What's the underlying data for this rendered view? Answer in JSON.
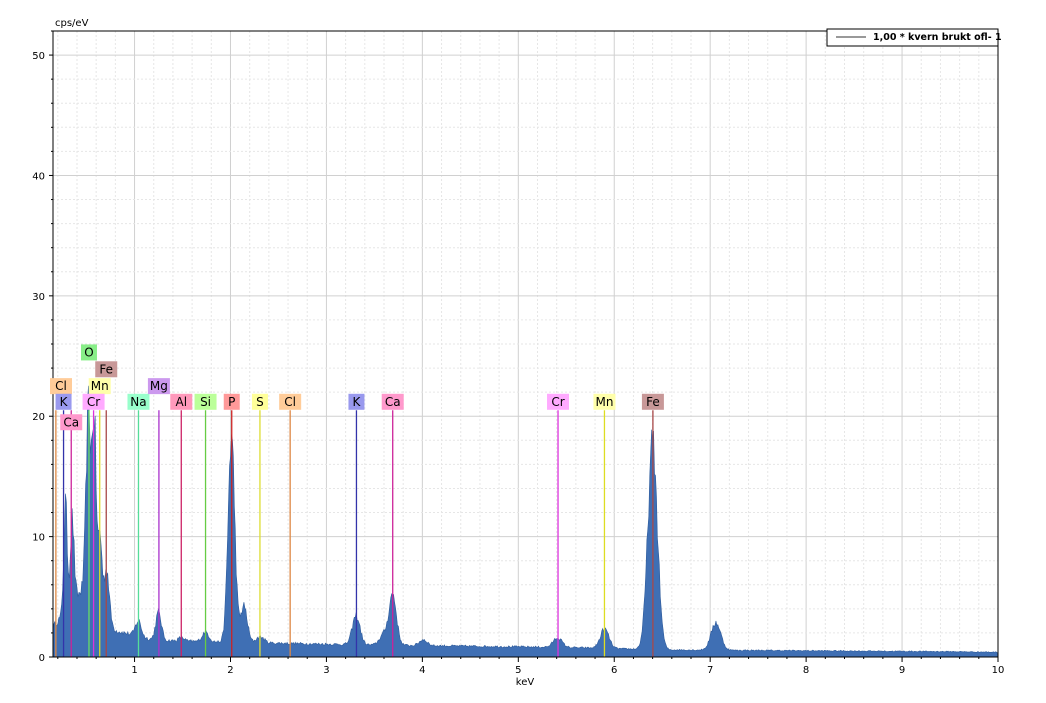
{
  "chart_data": {
    "type": "line",
    "title": "",
    "xlabel": "keV",
    "ylabel": "cps/eV",
    "xlim": [
      0.15,
      10
    ],
    "ylim": [
      0,
      52
    ],
    "x_ticks": [
      1,
      2,
      3,
      4,
      5,
      6,
      7,
      8,
      9,
      10
    ],
    "y_ticks": [
      0,
      10,
      20,
      30,
      40,
      50
    ],
    "grid": true,
    "legend": {
      "placement": "top-right",
      "entries": [
        "1,00 * kvern brukt ofl- 1"
      ]
    },
    "series": [
      {
        "name": "1,00 * kvern brukt ofl- 1",
        "fill_color": "#3f6fb4",
        "baseline": 0.8,
        "background": [
          [
            0.15,
            2.5
          ],
          [
            0.5,
            6.0
          ],
          [
            0.8,
            2.2
          ],
          [
            1.2,
            1.4
          ],
          [
            1.6,
            1.3
          ],
          [
            2.2,
            1.2
          ],
          [
            2.8,
            1.1
          ],
          [
            3.5,
            1.0
          ],
          [
            4.5,
            0.9
          ],
          [
            5.5,
            0.8
          ],
          [
            6.5,
            0.6
          ],
          [
            7.5,
            0.55
          ],
          [
            8.5,
            0.5
          ],
          [
            9.5,
            0.45
          ],
          [
            10.0,
            0.4
          ]
        ],
        "peaks": [
          {
            "center": 0.28,
            "height": 9.0,
            "width": 0.018
          },
          {
            "center": 0.35,
            "height": 7.0,
            "width": 0.02
          },
          {
            "center": 0.52,
            "height": 15.0,
            "width": 0.025
          },
          {
            "center": 0.58,
            "height": 14.5,
            "width": 0.02
          },
          {
            "center": 0.64,
            "height": 6.0,
            "width": 0.02
          },
          {
            "center": 0.71,
            "height": 4.0,
            "width": 0.025
          },
          {
            "center": 1.04,
            "height": 1.3,
            "width": 0.03
          },
          {
            "center": 1.25,
            "height": 2.3,
            "width": 0.03
          },
          {
            "center": 1.49,
            "height": 0.3,
            "width": 0.03
          },
          {
            "center": 1.74,
            "height": 0.8,
            "width": 0.035
          },
          {
            "center": 2.01,
            "height": 17.0,
            "width": 0.035
          },
          {
            "center": 2.14,
            "height": 3.0,
            "width": 0.035
          },
          {
            "center": 2.31,
            "height": 0.5,
            "width": 0.04
          },
          {
            "center": 3.31,
            "height": 2.4,
            "width": 0.04
          },
          {
            "center": 3.59,
            "height": 0.8,
            "width": 0.04
          },
          {
            "center": 3.69,
            "height": 4.2,
            "width": 0.04
          },
          {
            "center": 4.01,
            "height": 0.5,
            "width": 0.04
          },
          {
            "center": 5.41,
            "height": 0.8,
            "width": 0.045
          },
          {
            "center": 5.9,
            "height": 1.6,
            "width": 0.045
          },
          {
            "center": 6.4,
            "height": 17.0,
            "width": 0.05
          },
          {
            "center": 7.06,
            "height": 2.3,
            "width": 0.05
          }
        ]
      }
    ],
    "element_markers": [
      {
        "element": "O",
        "energy": 0.525,
        "height": 20.5,
        "color": "#66dd66",
        "label_bg": "#88ee88",
        "label_y": 25.3
      },
      {
        "element": "Fe",
        "energy": 0.705,
        "height": 20.5,
        "color": "#a84848",
        "label_bg": "#c89898",
        "label_y": 23.9
      },
      {
        "element": "Mn",
        "energy": 0.637,
        "height": 20.5,
        "color": "#dddd22",
        "label_bg": "#ffffaa",
        "label_y": 22.5
      },
      {
        "element": "Cl",
        "energy": 0.18,
        "height": 20.5,
        "color": "#dd8844",
        "label_bg": "#ffcc99",
        "label_y": 22.5
      },
      {
        "element": "K",
        "energy": 0.26,
        "height": 20.5,
        "color": "#3333aa",
        "label_bg": "#9999ee",
        "label_y": 21.2
      },
      {
        "element": "Cr",
        "energy": 0.573,
        "height": 20.5,
        "color": "#dd33dd",
        "label_bg": "#ffaaff",
        "label_y": 21.2
      },
      {
        "element": "Ca",
        "energy": 0.34,
        "height": 20.5,
        "color": "#cc2299",
        "label_bg": "#ff99cc",
        "label_y": 19.5
      },
      {
        "element": "Na",
        "energy": 1.041,
        "height": 20.5,
        "color": "#55dd99",
        "label_bg": "#99ffcc",
        "label_y": 21.2
      },
      {
        "element": "Mg",
        "energy": 1.254,
        "height": 20.5,
        "color": "#aa33cc",
        "label_bg": "#cc99ee",
        "label_y": 22.5
      },
      {
        "element": "Al",
        "energy": 1.487,
        "height": 20.5,
        "color": "#cc2266",
        "label_bg": "#ff99bb",
        "label_y": 21.2
      },
      {
        "element": "Si",
        "energy": 1.74,
        "height": 20.5,
        "color": "#66cc44",
        "label_bg": "#bbff99",
        "label_y": 21.2
      },
      {
        "element": "P",
        "energy": 2.013,
        "height": 20.5,
        "color": "#cc2222",
        "label_bg": "#ff9999",
        "label_y": 21.2
      },
      {
        "element": "S",
        "energy": 2.307,
        "height": 20.5,
        "color": "#dddd33",
        "label_bg": "#ffff99",
        "label_y": 21.2
      },
      {
        "element": "Cl",
        "energy": 2.622,
        "height": 20.5,
        "color": "#dd8844",
        "label_bg": "#ffcc99",
        "label_y": 21.2
      },
      {
        "element": "K",
        "energy": 3.313,
        "height": 20.5,
        "color": "#3333aa",
        "label_bg": "#9999ee",
        "label_y": 21.2
      },
      {
        "element": "Ca",
        "energy": 3.691,
        "height": 20.5,
        "color": "#cc2299",
        "label_bg": "#ff99cc",
        "label_y": 21.2
      },
      {
        "element": "Cr",
        "energy": 5.414,
        "height": 20.5,
        "color": "#dd33dd",
        "label_bg": "#ffaaff",
        "label_y": 21.2
      },
      {
        "element": "Mn",
        "energy": 5.898,
        "height": 20.5,
        "color": "#dddd22",
        "label_bg": "#ffffaa",
        "label_y": 21.2
      },
      {
        "element": "Fe",
        "energy": 6.403,
        "height": 20.5,
        "color": "#a84848",
        "label_bg": "#c89898",
        "label_y": 21.2
      }
    ]
  }
}
